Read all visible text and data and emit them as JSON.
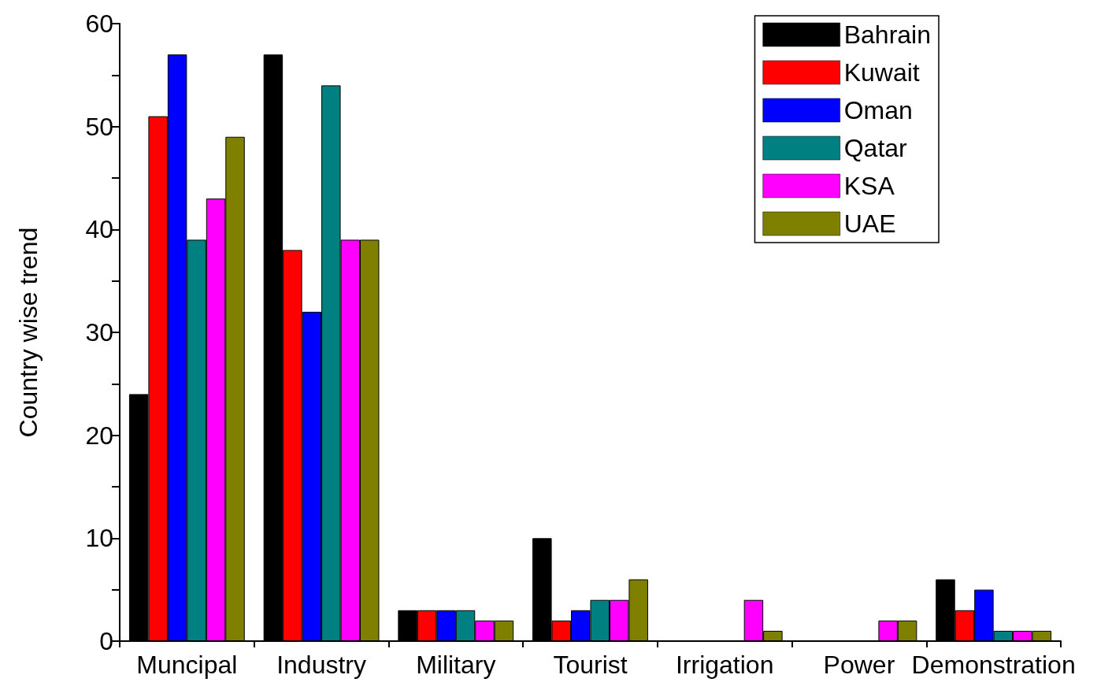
{
  "chart_data": {
    "type": "bar",
    "ylabel": "Country wise trend",
    "categories": [
      "Muncipal",
      "Industry",
      "Military",
      "Tourist",
      "Irrigation",
      "Power",
      "Demonstration"
    ],
    "series": [
      {
        "name": "Bahrain",
        "color": "#000000",
        "values": [
          24,
          57,
          3,
          10,
          null,
          null,
          6
        ]
      },
      {
        "name": "Kuwait",
        "color": "#ff0000",
        "values": [
          51,
          38,
          3,
          2,
          null,
          null,
          3
        ]
      },
      {
        "name": "Oman",
        "color": "#0000ff",
        "values": [
          57,
          32,
          3,
          3,
          null,
          null,
          5
        ]
      },
      {
        "name": "Qatar",
        "color": "#008080",
        "values": [
          39,
          54,
          3,
          4,
          null,
          null,
          1
        ]
      },
      {
        "name": "KSA",
        "color": "#ff00ff",
        "values": [
          43,
          39,
          2,
          4,
          4,
          2,
          1
        ]
      },
      {
        "name": "UAE",
        "color": "#808000",
        "values": [
          49,
          39,
          2,
          6,
          1,
          2,
          1
        ]
      }
    ],
    "ylim": [
      0,
      60
    ],
    "yticks": [
      0,
      {
        "value": 5,
        "label": null
      },
      10,
      {
        "value": 15,
        "label": null
      },
      20,
      {
        "value": 25,
        "label": null
      },
      30,
      {
        "value": 35,
        "label": null
      },
      40,
      {
        "value": 45,
        "label": null
      },
      50,
      {
        "value": 55,
        "label": null
      },
      60
    ],
    "grid": false,
    "legend": "top right"
  }
}
